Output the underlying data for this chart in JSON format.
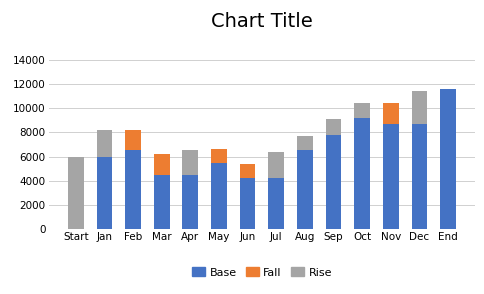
{
  "categories": [
    "Start",
    "Jan",
    "Feb",
    "Mar",
    "Apr",
    "May",
    "Jun",
    "Jul",
    "Aug",
    "Sep",
    "Oct",
    "Nov",
    "Dec",
    "End"
  ],
  "base": [
    0,
    6000,
    6500,
    4500,
    4500,
    5500,
    4200,
    4200,
    6500,
    7800,
    9200,
    8700,
    8700,
    11600
  ],
  "fall": [
    0,
    0,
    1700,
    1700,
    0,
    1100,
    1200,
    0,
    0,
    0,
    0,
    1700,
    0,
    0
  ],
  "rise": [
    6000,
    2200,
    0,
    0,
    2000,
    0,
    0,
    2200,
    1200,
    1300,
    1200,
    0,
    2700,
    0
  ],
  "colors": {
    "base": "#4472C4",
    "fall": "#ED7D31",
    "rise": "#A5A5A5",
    "bg": "#FFFFFF"
  },
  "title": "Chart Title",
  "title_fontsize": 14,
  "ylim": [
    0,
    16000
  ],
  "yticks": [
    0,
    2000,
    4000,
    6000,
    8000,
    10000,
    12000,
    14000
  ],
  "legend_labels": [
    "Base",
    "Fall",
    "Rise"
  ],
  "bar_width": 0.55,
  "tick_fontsize": 7.5
}
